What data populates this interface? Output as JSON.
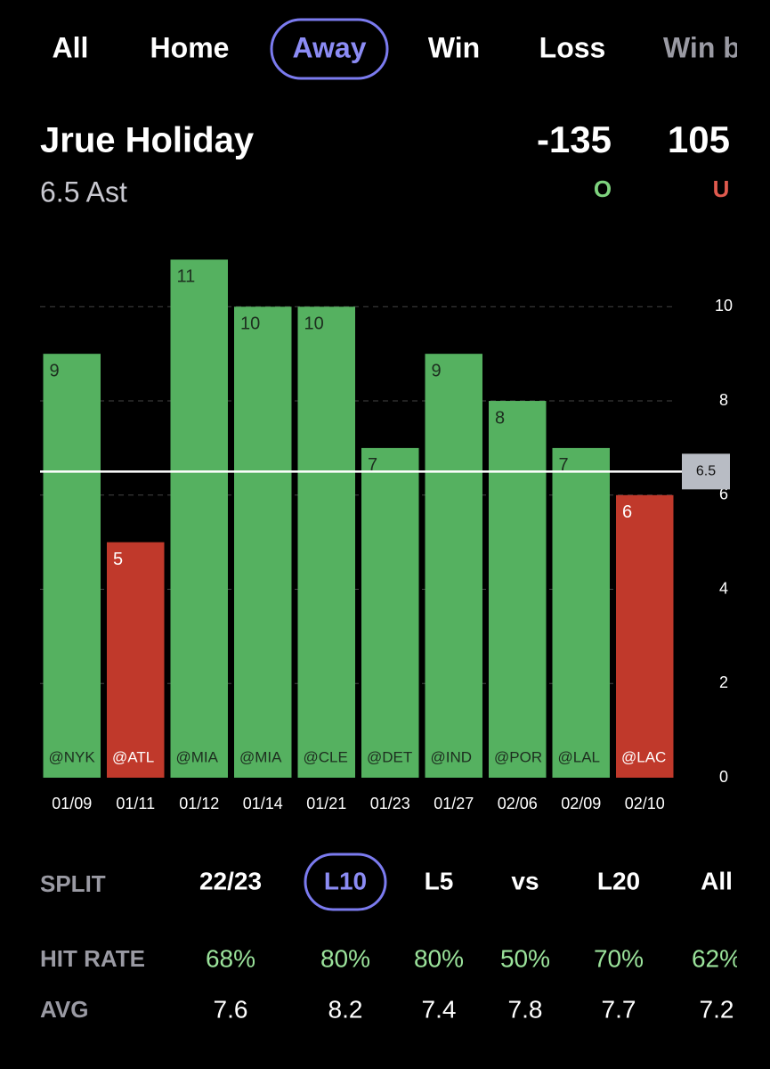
{
  "tabs": [
    "All",
    "Home",
    "Away",
    "Win",
    "Loss",
    "Win by"
  ],
  "active_tab": "Away",
  "player": {
    "name": "Jrue Holiday",
    "line": "6.5 Ast",
    "over": {
      "odds": "-135",
      "label": "O"
    },
    "under": {
      "odds": "105",
      "label": "U"
    }
  },
  "chart_data": {
    "type": "bar",
    "categories": [
      "01/09",
      "01/11",
      "01/12",
      "01/14",
      "01/21",
      "01/23",
      "01/27",
      "02/06",
      "02/09",
      "02/10"
    ],
    "opponents": [
      "@NYK",
      "@ATL",
      "@MIA",
      "@MIA",
      "@CLE",
      "@DET",
      "@IND",
      "@POR",
      "@LAL",
      "@LAC"
    ],
    "values": [
      9,
      5,
      11,
      10,
      10,
      7,
      9,
      8,
      7,
      6
    ],
    "colors": [
      "#55b160",
      "#c0392b",
      "#55b160",
      "#55b160",
      "#55b160",
      "#55b160",
      "#55b160",
      "#55b160",
      "#55b160",
      "#c0392b"
    ],
    "ylim": [
      0,
      11.5
    ],
    "yticks": [
      0,
      2,
      4,
      6,
      8,
      10
    ],
    "grid": true,
    "reference_line": {
      "value": 6.5,
      "label": "6.5"
    }
  },
  "splits": {
    "split_label": "SPLIT",
    "columns": [
      "22/23",
      "L10",
      "L5",
      "vs",
      "L20",
      "All"
    ],
    "active": "L10",
    "hit_rate_label": "HIT RATE",
    "hit_rates": [
      "68%",
      "80%",
      "80%",
      "50%",
      "70%",
      "62%"
    ],
    "avg_label": "AVG",
    "avgs": [
      "7.6",
      "8.2",
      "7.4",
      "7.8",
      "7.7",
      "7.2"
    ]
  }
}
